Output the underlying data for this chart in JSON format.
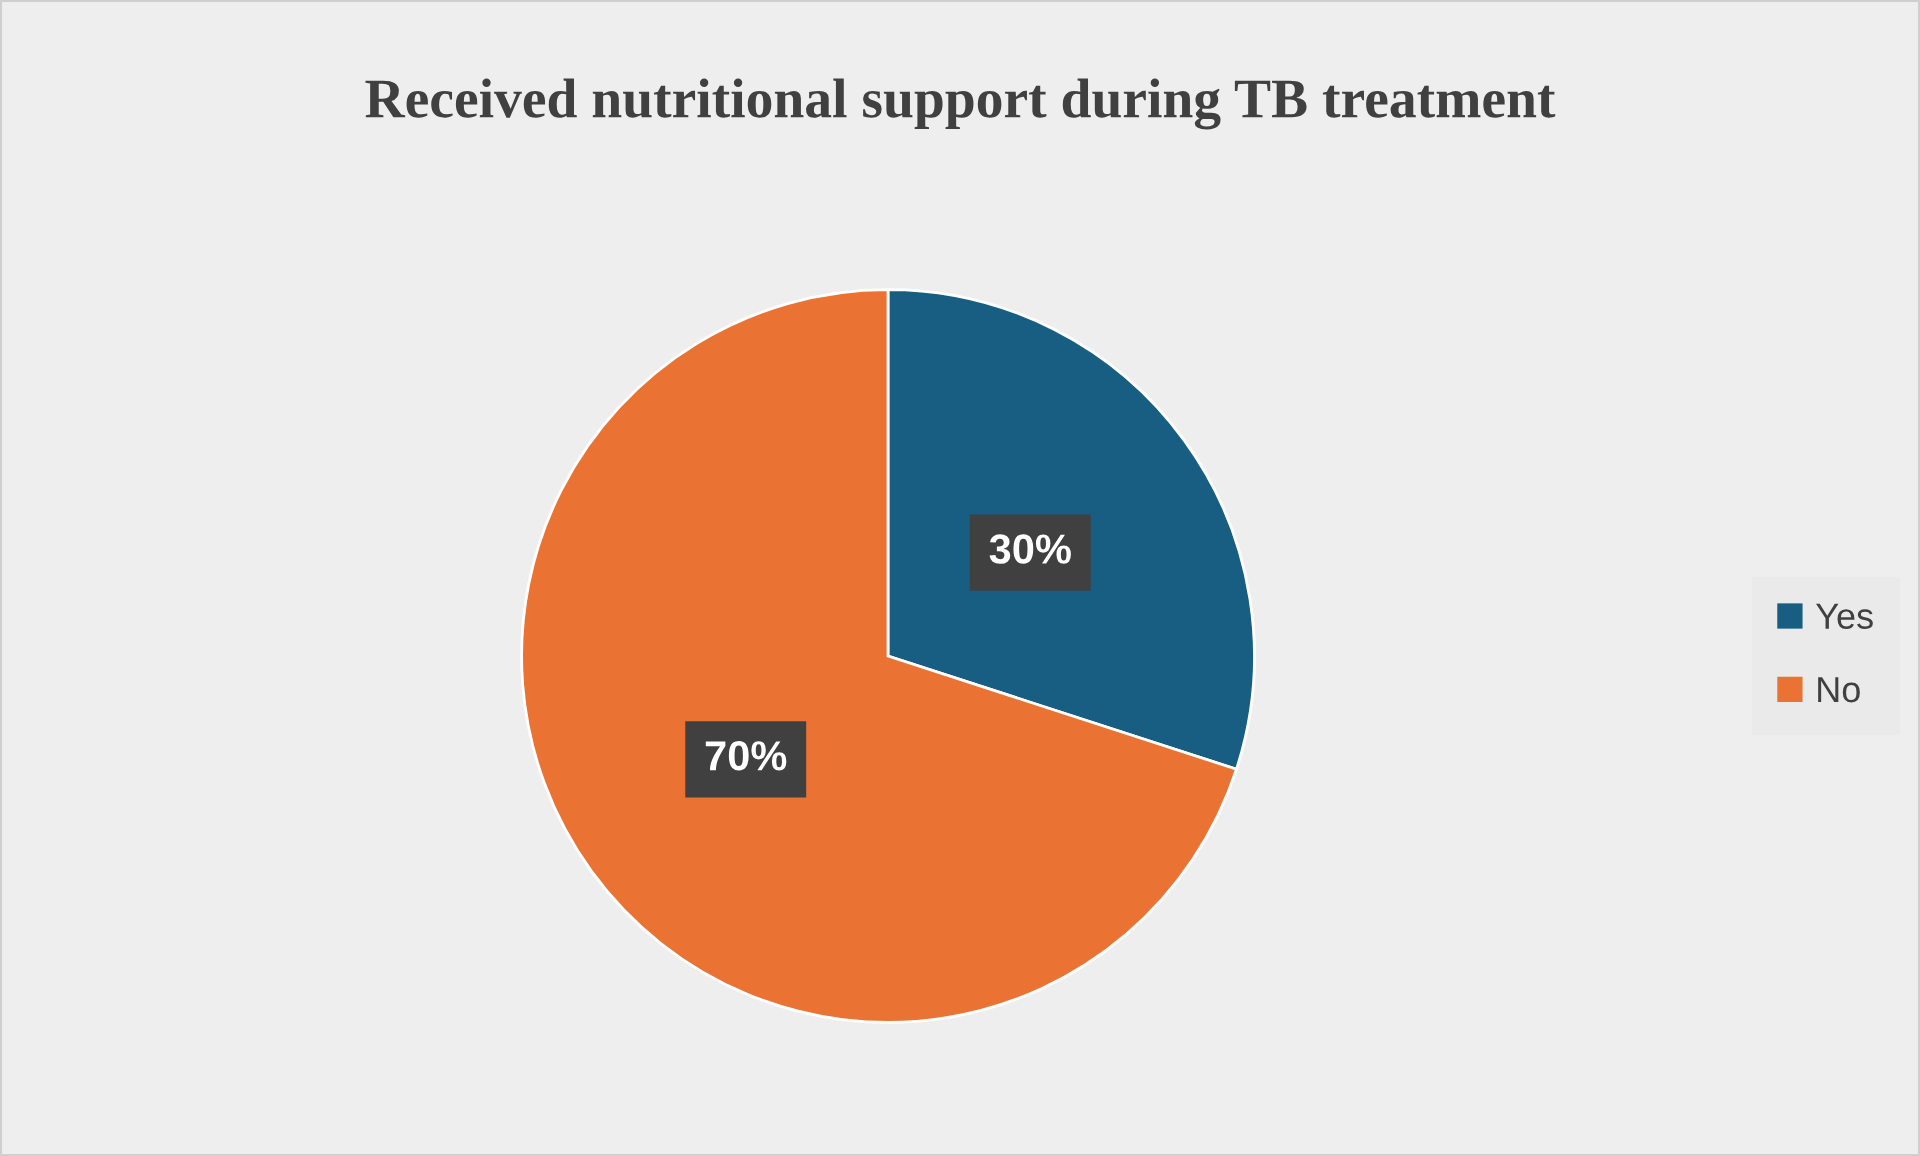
{
  "chart_data": {
    "type": "pie",
    "title": "Received nutritional support during TB treatment",
    "categories": [
      "Yes",
      "No"
    ],
    "values": [
      30,
      70
    ],
    "colors": [
      "#175e82",
      "#ea7233"
    ],
    "value_labels": [
      "30%",
      "70%"
    ],
    "legend": "right"
  }
}
